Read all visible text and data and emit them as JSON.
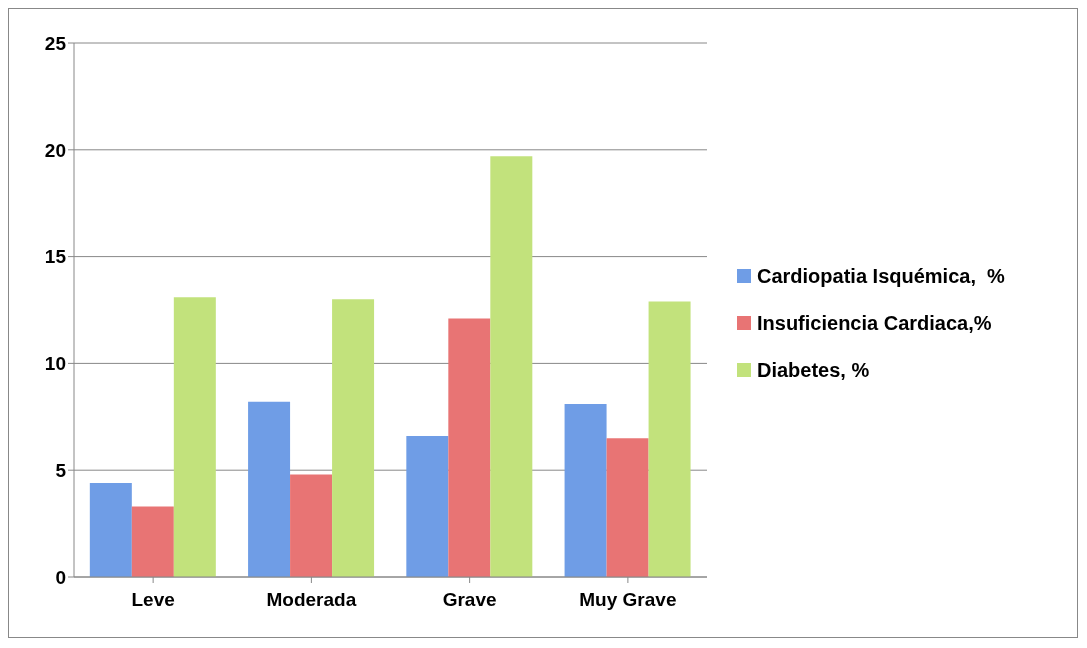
{
  "chart_data": {
    "type": "bar",
    "categories": [
      "Leve",
      "Moderada",
      "Grave",
      "Muy Grave"
    ],
    "series": [
      {
        "name": "Cardiopatia Isquémica,  %",
        "color": "#6f9de6",
        "values": [
          4.4,
          8.2,
          6.6,
          8.1
        ]
      },
      {
        "name": "Insuficiencia Cardiaca,%",
        "color": "#e87474",
        "values": [
          3.3,
          4.8,
          12.1,
          6.5
        ]
      },
      {
        "name": "Diabetes, %",
        "color": "#c2e27c",
        "values": [
          13.1,
          13.0,
          19.7,
          12.9
        ]
      }
    ],
    "ylim": [
      0,
      25
    ],
    "yticks": [
      0,
      5,
      10,
      15,
      20,
      25
    ],
    "grid": "y",
    "legend": "right"
  }
}
